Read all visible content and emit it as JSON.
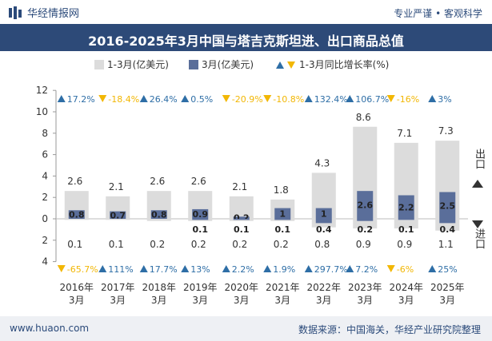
{
  "header": {
    "brand": "华经情报网",
    "tagline": "专业严谨 • 客观科学"
  },
  "footer": {
    "url": "www.huaon.com",
    "source": "数据来源：中国海关，华经产业研究院整理"
  },
  "colors": {
    "title_bg": "#2d4a78",
    "total_bar": "#dcdcdc",
    "march_bar": "#5a6e9a",
    "up": "#2e6ea6",
    "down": "#f2b705"
  },
  "chart_data": {
    "type": "bar",
    "title": "2016-2025年3月中国与塔吉克斯坦进、出口商品总值",
    "categories": [
      "2016年\n3月",
      "2017年\n3月",
      "2018年\n3月",
      "2019年\n3月",
      "2020年\n3月",
      "2021年\n3月",
      "2022年\n3月",
      "2023年\n3月",
      "2024年\n3月",
      "2025年\n3月"
    ],
    "legend": [
      "1-3月(亿美元)",
      "3月(亿美元)",
      "1-3月同比增长率(%)"
    ],
    "upper_axis_label": "出口",
    "lower_axis_label": "进口",
    "yticks_upper": [
      0,
      2,
      4,
      6,
      8,
      10,
      12
    ],
    "yticks_lower": [
      2,
      4
    ],
    "ylim_upper": [
      0,
      12
    ],
    "ylim_lower": [
      0,
      4
    ],
    "export": {
      "ytd": [
        2.6,
        2.1,
        2.6,
        2.6,
        2.1,
        1.8,
        4.3,
        8.6,
        7.1,
        7.3
      ],
      "march": [
        0.8,
        0.7,
        0.8,
        0.9,
        0.2,
        1,
        1,
        2.6,
        2.2,
        2.5
      ],
      "growth": [
        "17.2%",
        "-18.4%",
        "26.4%",
        "0.5%",
        "-20.9%",
        "-10.8%",
        "132.4%",
        "106.7%",
        "-16%",
        "3%"
      ]
    },
    "import": {
      "ytd": [
        0.1,
        0.1,
        0.2,
        0.2,
        0.2,
        0.2,
        0.8,
        0.9,
        0.9,
        1.1
      ],
      "march": [
        0,
        0,
        0,
        0.1,
        0.1,
        0.1,
        0.4,
        0.2,
        0.1,
        0.4
      ],
      "march_labels": [
        "",
        "",
        "",
        "0.1",
        "0.1",
        "0.1",
        "0.4",
        "0.2",
        "0.1",
        "0.4"
      ],
      "growth": [
        "-65.7%",
        "111%",
        "17.7%",
        "13%",
        "2.2%",
        "1.9%",
        "297.7%",
        "7.2%",
        "-6%",
        "25%"
      ]
    }
  }
}
